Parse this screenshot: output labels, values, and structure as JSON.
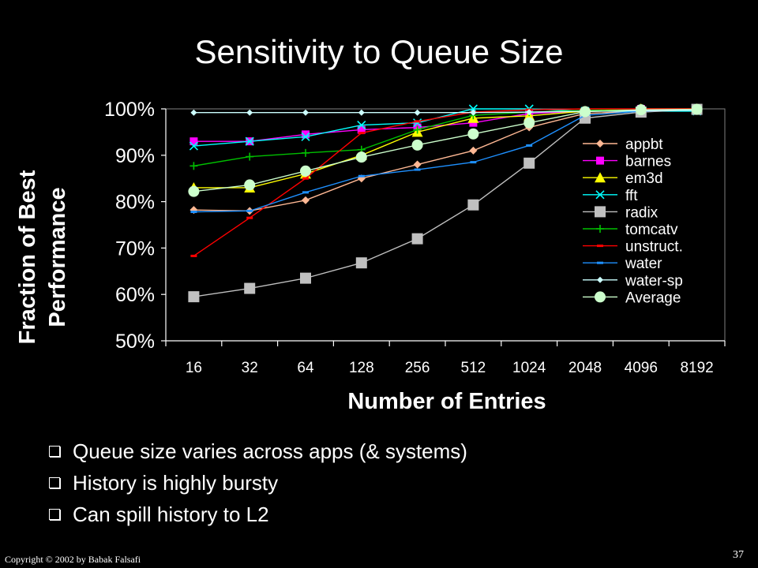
{
  "slide": {
    "title": "Sensitivity to Queue Size",
    "bullets": [
      "Queue size varies across apps (& systems)",
      "History is highly bursty",
      "Can spill history to L2"
    ],
    "footer": "Copyright © 2002  by Babak Falsafi",
    "page_number": "37"
  },
  "chart_data": {
    "type": "line",
    "xlabel": "Number of Entries",
    "ylabel_lines": [
      "Fraction of Best",
      "Performance"
    ],
    "categories": [
      "16",
      "32",
      "64",
      "128",
      "256",
      "512",
      "1024",
      "2048",
      "4096",
      "8192"
    ],
    "y_ticks": [
      "50%",
      "60%",
      "70%",
      "80%",
      "90%",
      "100%"
    ],
    "ylim": [
      50,
      100
    ],
    "grid": false,
    "legend_position": "right-inside",
    "series": [
      {
        "name": "appbt",
        "color": "#ffb894",
        "marker": "diamond",
        "values": [
          78.2,
          78,
          80.3,
          85,
          88,
          91,
          96,
          99,
          99.5,
          100
        ]
      },
      {
        "name": "barnes",
        "color": "#ff00ff",
        "marker": "square",
        "values": [
          93,
          93,
          94.5,
          95.5,
          96,
          97,
          99,
          99.5,
          100,
          100
        ]
      },
      {
        "name": "em3d",
        "color": "#ffff00",
        "marker": "triangle",
        "values": [
          83,
          83,
          86,
          90,
          95,
          98,
          98.5,
          99.5,
          100,
          100
        ]
      },
      {
        "name": "fft",
        "color": "#00ffff",
        "marker": "x",
        "values": [
          92,
          93,
          94,
          96.5,
          97,
          100,
          100,
          99.5,
          99.5,
          99.5
        ]
      },
      {
        "name": "radix",
        "color": "#c0c0c0",
        "marker": "bigsquare",
        "values": [
          59.5,
          61.3,
          63.5,
          66.8,
          72,
          79.3,
          88.3,
          98,
          99.3,
          99.9
        ]
      },
      {
        "name": "tomcatv",
        "color": "#00c000",
        "marker": "plus",
        "values": [
          87.7,
          89.7,
          90.5,
          91.2,
          95.5,
          98.6,
          99.3,
          99.7,
          100,
          100
        ]
      },
      {
        "name": "unstruct.",
        "color": "#ff0000",
        "marker": "dash",
        "values": [
          68.3,
          76.5,
          85,
          94.8,
          97.3,
          99.3,
          99.8,
          100,
          100,
          100
        ]
      },
      {
        "name": "water",
        "color": "#1e90ff",
        "marker": "dash",
        "values": [
          77.8,
          78,
          82,
          85.5,
          86.9,
          88.5,
          92.1,
          98.6,
          99.5,
          99.9
        ]
      },
      {
        "name": "water-sp",
        "color": "#ccffff",
        "marker": "smalldiamond",
        "values": [
          99.2,
          99.2,
          99.2,
          99.2,
          99.2,
          99.2,
          99.3,
          99.5,
          99.6,
          99.7
        ]
      },
      {
        "name": "Average",
        "color": "#ccffcc",
        "marker": "circle",
        "values": [
          82.2,
          83.6,
          86.6,
          89.6,
          92.2,
          94.6,
          97,
          99.4,
          99.8,
          99.9
        ]
      }
    ]
  }
}
